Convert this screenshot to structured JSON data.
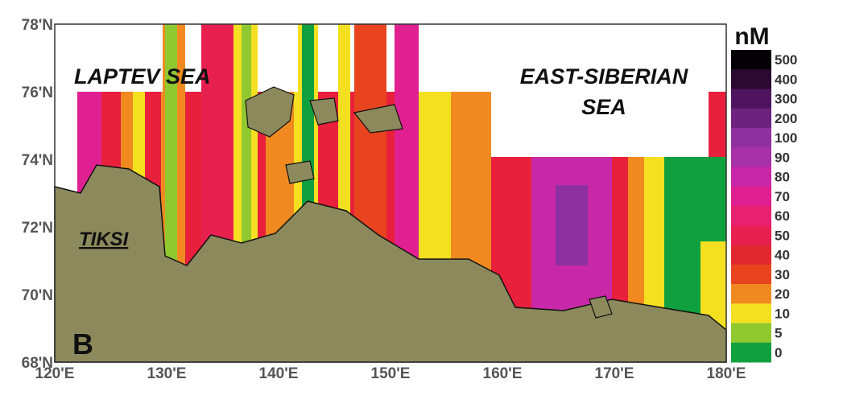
{
  "map": {
    "panel_label": "B",
    "unit": "nM",
    "regions": [
      "LAPTEV SEA",
      "EAST-SIBERIAN",
      "SEA"
    ],
    "place": "TIKSI",
    "lat_ticks": [
      "78'N",
      "76'N",
      "74'N",
      "72'N",
      "70'N",
      "68'N"
    ],
    "lon_ticks": [
      "120'E",
      "130'E",
      "140'E",
      "150'E",
      "160'E",
      "170'E",
      "180'E"
    ],
    "colorbar": [
      {
        "label": "500",
        "color": "#050005"
      },
      {
        "label": "400",
        "color": "#2a0a30"
      },
      {
        "label": "300",
        "color": "#4e1460"
      },
      {
        "label": "200",
        "color": "#6e2280"
      },
      {
        "label": "100",
        "color": "#8e30a0"
      },
      {
        "label": "90",
        "color": "#a830a8"
      },
      {
        "label": "80",
        "color": "#c828a8"
      },
      {
        "label": "70",
        "color": "#e02090"
      },
      {
        "label": "60",
        "color": "#e82070"
      },
      {
        "label": "50",
        "color": "#e82050"
      },
      {
        "label": "40",
        "color": "#e02830"
      },
      {
        "label": "30",
        "color": "#e84420"
      },
      {
        "label": "20",
        "color": "#f08a20"
      },
      {
        "label": "10",
        "color": "#f4e020"
      },
      {
        "label": "5",
        "color": "#90c830"
      },
      {
        "label": "0",
        "color": "#10a040"
      }
    ]
  }
}
